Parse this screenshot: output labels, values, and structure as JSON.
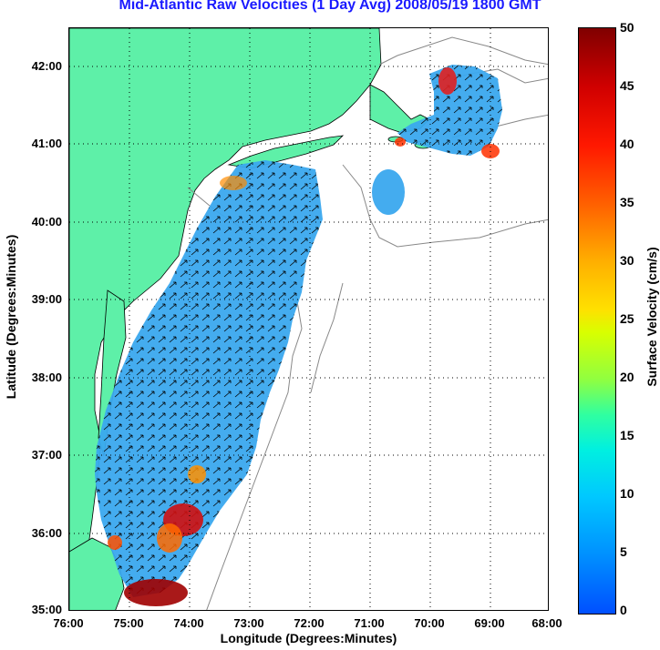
{
  "title": "Mid-Atlantic Raw Velocities (1 Day Avg) 2008/05/19 1800 GMT",
  "axes": {
    "xlabel": "Longitude (Degrees:Minutes)",
    "ylabel": "Latitude (Degrees:Minutes)",
    "lat_ticks": [
      "42:00",
      "41:00",
      "40:00",
      "39:00",
      "38:00",
      "37:00",
      "36:00",
      "35:00"
    ],
    "lon_ticks": [
      "76:00",
      "75:00",
      "74:00",
      "73:00",
      "72:00",
      "71:00",
      "70:00",
      "69:00",
      "68:00"
    ]
  },
  "colorbar": {
    "label": "Surface Velocity (cm/s)",
    "ticks": [
      "50",
      "45",
      "40",
      "35",
      "30",
      "25",
      "20",
      "15",
      "10",
      "5",
      "0"
    ],
    "range": [
      0,
      50
    ]
  },
  "colors": {
    "land": "#5ef0a8",
    "coastline": "#000000",
    "bathymetry": "#888888",
    "title": "#1a1aff",
    "ocean_field_dominant": "#3aa8ee",
    "grid": "#000000"
  },
  "map": {
    "extent_lon": [
      -76,
      -68
    ],
    "extent_lat": [
      35,
      42.5
    ],
    "grid": "dotted"
  }
}
